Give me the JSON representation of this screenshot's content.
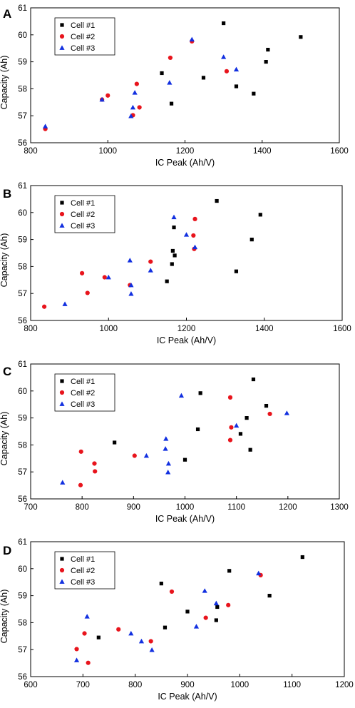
{
  "chart_data": [
    {
      "panel": "A",
      "type": "scatter",
      "xlabel": "IC Peak (Ah/V)",
      "ylabel": "Capacity (Ah)",
      "xlim": [
        800,
        1600
      ],
      "ylim": [
        56,
        61
      ],
      "xticks": [
        800,
        1000,
        1200,
        1400,
        1600
      ],
      "yticks": [
        56,
        57,
        58,
        59,
        60,
        61
      ],
      "legend": "top-left",
      "series": [
        {
          "name": "Cell #1",
          "marker": "square",
          "color": "#000000",
          "points": [
            [
              1300,
              60.43
            ],
            [
              1500,
              59.92
            ],
            [
              1415,
              59.45
            ],
            [
              1410,
              59.0
            ],
            [
              1140,
              58.58
            ],
            [
              1248,
              58.41
            ],
            [
              1333,
              58.09
            ],
            [
              1378,
              57.82
            ],
            [
              1165,
              57.45
            ]
          ]
        },
        {
          "name": "Cell #2",
          "marker": "circle",
          "color": "#e8141c",
          "points": [
            [
              838,
              56.51
            ],
            [
              1000,
              57.75
            ],
            [
              985,
              57.6
            ],
            [
              1065,
              57.02
            ],
            [
              1075,
              58.18
            ],
            [
              1082,
              57.31
            ],
            [
              1162,
              59.15
            ],
            [
              1218,
              59.76
            ],
            [
              1308,
              58.65
            ]
          ]
        },
        {
          "name": "Cell #3",
          "marker": "triangle",
          "color": "#1230e0",
          "points": [
            [
              838,
              56.61
            ],
            [
              985,
              57.6
            ],
            [
              1060,
              56.99
            ],
            [
              1065,
              57.31
            ],
            [
              1070,
              57.86
            ],
            [
              1160,
              58.23
            ],
            [
              1218,
              59.83
            ],
            [
              1300,
              59.18
            ],
            [
              1333,
              58.72
            ]
          ]
        }
      ]
    },
    {
      "panel": "B",
      "type": "scatter",
      "xlabel": "IC Peak (Ah/V)",
      "ylabel": "Capacity (Ah)",
      "xlim": [
        800,
        1600
      ],
      "ylim": [
        56,
        61
      ],
      "xticks": [
        800,
        1000,
        1200,
        1400,
        1600
      ],
      "yticks": [
        56,
        57,
        58,
        59,
        60,
        61
      ],
      "legend": "top-left",
      "series": [
        {
          "name": "Cell #1",
          "marker": "square",
          "color": "#000000",
          "points": [
            [
              1278,
              60.43
            ],
            [
              1390,
              59.92
            ],
            [
              1168,
              59.45
            ],
            [
              1368,
              59.0
            ],
            [
              1165,
              58.58
            ],
            [
              1170,
              58.41
            ],
            [
              1163,
              58.09
            ],
            [
              1328,
              57.82
            ],
            [
              1150,
              57.45
            ]
          ]
        },
        {
          "name": "Cell #2",
          "marker": "circle",
          "color": "#e8141c",
          "points": [
            [
              835,
              56.51
            ],
            [
              932,
              57.75
            ],
            [
              946,
              57.02
            ],
            [
              990,
              57.6
            ],
            [
              1055,
              57.31
            ],
            [
              1108,
              58.18
            ],
            [
              1218,
              59.15
            ],
            [
              1222,
              59.76
            ],
            [
              1220,
              58.65
            ]
          ]
        },
        {
          "name": "Cell #3",
          "marker": "triangle",
          "color": "#1230e0",
          "points": [
            [
              888,
              56.61
            ],
            [
              1000,
              57.6
            ],
            [
              1055,
              58.23
            ],
            [
              1058,
              56.99
            ],
            [
              1058,
              57.31
            ],
            [
              1108,
              57.86
            ],
            [
              1168,
              59.83
            ],
            [
              1200,
              59.18
            ],
            [
              1222,
              58.72
            ]
          ]
        }
      ]
    },
    {
      "panel": "C",
      "type": "scatter",
      "xlabel": "IC Peak (Ah/V)",
      "ylabel": "Capacity (Ah)",
      "xlim": [
        700,
        1300
      ],
      "ylim": [
        56,
        61
      ],
      "xticks": [
        700,
        800,
        900,
        1000,
        1100,
        1200,
        1300
      ],
      "yticks": [
        56,
        57,
        58,
        59,
        60,
        61
      ],
      "legend": "top-left",
      "series": [
        {
          "name": "Cell #1",
          "marker": "square",
          "color": "#000000",
          "points": [
            [
              1133,
              60.43
            ],
            [
              1030,
              59.92
            ],
            [
              1158,
              59.45
            ],
            [
              1120,
              59.0
            ],
            [
              1025,
              58.58
            ],
            [
              1108,
              58.41
            ],
            [
              863,
              58.09
            ],
            [
              1127,
              57.82
            ],
            [
              1000,
              57.45
            ]
          ]
        },
        {
          "name": "Cell #2",
          "marker": "circle",
          "color": "#e8141c",
          "points": [
            [
              797,
              56.51
            ],
            [
              798,
              57.75
            ],
            [
              824,
              57.31
            ],
            [
              825,
              57.02
            ],
            [
              902,
              57.6
            ],
            [
              1088,
              59.76
            ],
            [
              1090,
              58.65
            ],
            [
              1088,
              58.18
            ],
            [
              1165,
              59.15
            ]
          ]
        },
        {
          "name": "Cell #3",
          "marker": "triangle",
          "color": "#1230e0",
          "points": [
            [
              762,
              56.61
            ],
            [
              925,
              57.6
            ],
            [
              962,
              57.86
            ],
            [
              963,
              58.23
            ],
            [
              967,
              56.99
            ],
            [
              968,
              57.31
            ],
            [
              993,
              59.83
            ],
            [
              1100,
              58.72
            ],
            [
              1198,
              59.18
            ]
          ]
        }
      ]
    },
    {
      "panel": "D",
      "type": "scatter",
      "xlabel": "IC Peak (Ah/V)",
      "ylabel": "Capacity (Ah)",
      "xlim": [
        600,
        1200
      ],
      "ylim": [
        56,
        61
      ],
      "xticks": [
        600,
        700,
        800,
        900,
        1000,
        1100,
        1200
      ],
      "yticks": [
        56,
        57,
        58,
        59,
        60,
        61
      ],
      "legend": "top-left",
      "series": [
        {
          "name": "Cell #1",
          "marker": "square",
          "color": "#000000",
          "points": [
            [
              1120,
              60.43
            ],
            [
              980,
              59.92
            ],
            [
              850,
              59.45
            ],
            [
              1057,
              59.0
            ],
            [
              957,
              58.58
            ],
            [
              900,
              58.41
            ],
            [
              955,
              58.09
            ],
            [
              857,
              57.82
            ],
            [
              730,
              57.45
            ]
          ]
        },
        {
          "name": "Cell #2",
          "marker": "circle",
          "color": "#e8141c",
          "points": [
            [
              688,
              57.02
            ],
            [
              703,
              57.6
            ],
            [
              710,
              56.51
            ],
            [
              768,
              57.75
            ],
            [
              830,
              57.31
            ],
            [
              870,
              59.15
            ],
            [
              935,
              58.18
            ],
            [
              978,
              58.65
            ],
            [
              1040,
              59.76
            ]
          ]
        },
        {
          "name": "Cell #3",
          "marker": "triangle",
          "color": "#1230e0",
          "points": [
            [
              688,
              56.61
            ],
            [
              708,
              58.23
            ],
            [
              792,
              57.6
            ],
            [
              812,
              57.31
            ],
            [
              832,
              56.99
            ],
            [
              917,
              57.86
            ],
            [
              933,
              59.18
            ],
            [
              955,
              58.72
            ],
            [
              1036,
              59.83
            ]
          ]
        }
      ]
    }
  ]
}
